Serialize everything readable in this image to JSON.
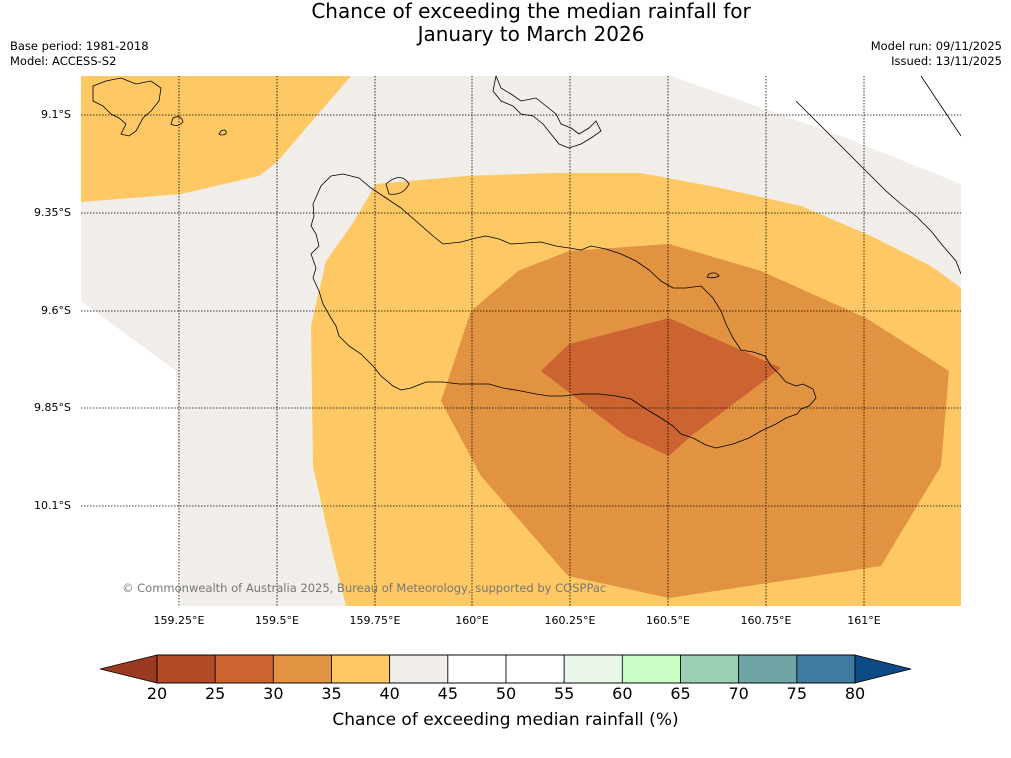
{
  "header": {
    "title_line1": "Chance of exceeding the median rainfall for",
    "title_line2": "January to March 2026",
    "base_period": "Base period: 1981-2018",
    "model": "Model: ACCESS-S2",
    "model_run": "Model run: 09/11/2025",
    "issued": "Issued: 13/11/2025"
  },
  "map": {
    "lat_labels": [
      "9.1°S",
      "9.35°S",
      "9.6°S",
      "9.85°S",
      "10.1°S"
    ],
    "lon_labels": [
      "159.25°E",
      "159.5°E",
      "159.75°E",
      "160°E",
      "160.25°E",
      "160.5°E",
      "160.75°E",
      "161°E"
    ],
    "copyright": "© Commonwealth of Australia 2025, Bureau of Meteorology, supported by COSPPac",
    "colors": {
      "band_40_45": "#f1ede8",
      "band_35_40": "#fec965",
      "band_30_35": "#e19341",
      "band_25_30": "#cc6432",
      "coastline": "#000000",
      "grid": "#000000"
    }
  },
  "colorbar": {
    "title": "Chance of exceeding median rainfall (%)",
    "labels": [
      "20",
      "25",
      "30",
      "35",
      "40",
      "45",
      "50",
      "55",
      "60",
      "65",
      "70",
      "75",
      "80"
    ],
    "bin_colors": [
      "#b44b28",
      "#cc6432",
      "#e19341",
      "#fec965",
      "#f1ede8",
      "#ffffff",
      "#ffffff",
      "#eaf6ea",
      "#c8fdc8",
      "#9bd0b7",
      "#6fa5a5",
      "#3f7b9e"
    ],
    "under_color": "#9b3a22",
    "over_color": "#0e4a86"
  }
}
